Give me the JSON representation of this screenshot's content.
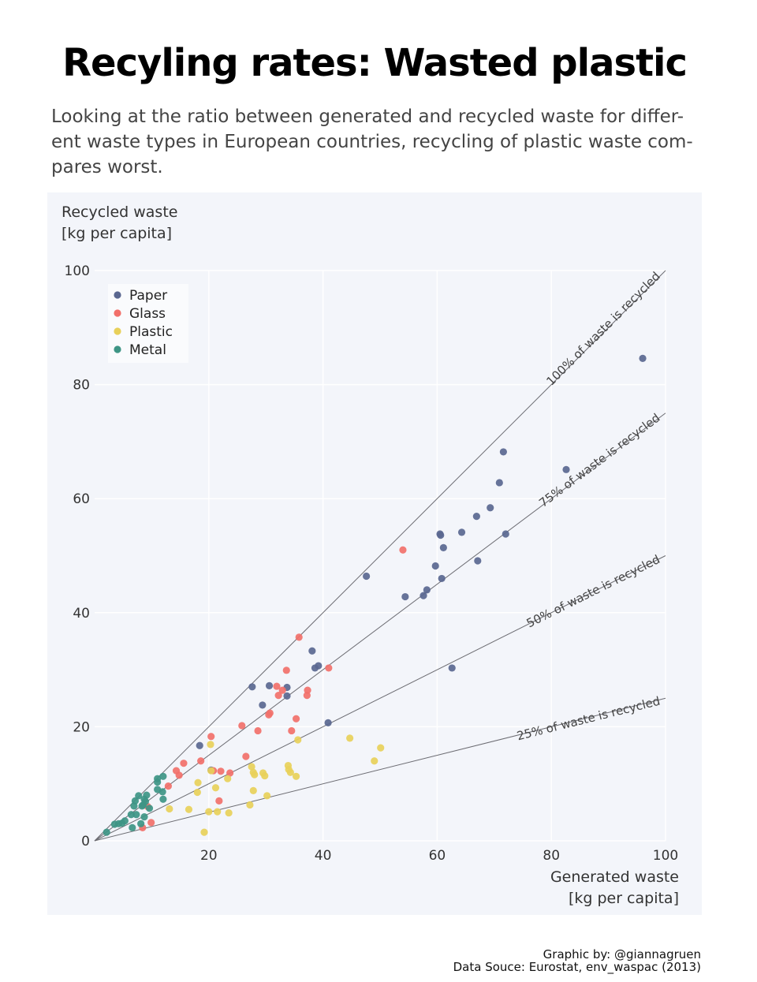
{
  "title": "Recyling rates: Wasted plastic",
  "subtitle": "Looking at the ratio between generated and recycled waste for differ-ent waste types in European countries, recycling of plastic waste com-pares worst.",
  "credits": {
    "graphic": "Graphic by: @giannagruen",
    "source": "Data Souce: Eurostat, env_waspac (2013)"
  },
  "chart_data": {
    "type": "scatter",
    "xlabel": [
      "Generated waste",
      "[kg per capita]"
    ],
    "ylabel": [
      "Recycled waste",
      "[kg per capita]"
    ],
    "xlim": [
      0,
      100
    ],
    "ylim": [
      0,
      100
    ],
    "x_ticks": [
      20,
      40,
      60,
      80,
      100
    ],
    "y_ticks": [
      0,
      20,
      40,
      60,
      80,
      100
    ],
    "grid": true,
    "legend_position": "top-left",
    "colors": {
      "Paper": "#5a6790",
      "Glass": "#f2706a",
      "Plastic": "#e8d05a",
      "Metal": "#3e9585"
    },
    "reference_lines": [
      {
        "ratio": 1.0,
        "label": "100% of  waste is recycled"
      },
      {
        "ratio": 0.75,
        "label": "75% of waste is recycled"
      },
      {
        "ratio": 0.5,
        "label": "50% of waste is recycled"
      },
      {
        "ratio": 0.25,
        "label": "25% of waste is recycled"
      }
    ],
    "series": [
      {
        "name": "Paper",
        "points": [
          [
            96,
            84.6
          ],
          [
            71.6,
            68.2
          ],
          [
            82.6,
            65.1
          ],
          [
            70.9,
            62.8
          ],
          [
            69.3,
            58.4
          ],
          [
            66.9,
            56.9
          ],
          [
            60.5,
            53.8
          ],
          [
            60.6,
            53.6
          ],
          [
            64.3,
            54.1
          ],
          [
            72.0,
            53.8
          ],
          [
            61.1,
            51.4
          ],
          [
            67.1,
            49.1
          ],
          [
            59.7,
            48.2
          ],
          [
            60.8,
            46.0
          ],
          [
            47.6,
            46.4
          ],
          [
            58.2,
            44.0
          ],
          [
            57.6,
            43.0
          ],
          [
            54.4,
            42.8
          ],
          [
            62.6,
            30.3
          ],
          [
            38.1,
            33.3
          ],
          [
            39.2,
            30.7
          ],
          [
            38.6,
            30.3
          ],
          [
            30.6,
            27.2
          ],
          [
            27.6,
            27.0
          ],
          [
            33.7,
            26.9
          ],
          [
            33.7,
            25.4
          ],
          [
            29.4,
            23.8
          ],
          [
            40.9,
            20.7
          ],
          [
            18.4,
            16.7
          ],
          [
            20.4,
            12.4
          ]
        ]
      },
      {
        "name": "Glass",
        "points": [
          [
            54.0,
            51.0
          ],
          [
            35.8,
            35.7
          ],
          [
            41.0,
            30.3
          ],
          [
            33.6,
            29.9
          ],
          [
            31.9,
            27.1
          ],
          [
            32.9,
            26.4
          ],
          [
            32.2,
            25.5
          ],
          [
            37.3,
            26.4
          ],
          [
            37.2,
            25.5
          ],
          [
            30.7,
            22.4
          ],
          [
            30.5,
            22.1
          ],
          [
            35.3,
            21.4
          ],
          [
            25.8,
            20.2
          ],
          [
            28.6,
            19.3
          ],
          [
            34.5,
            19.3
          ],
          [
            20.4,
            18.3
          ],
          [
            26.5,
            14.8
          ],
          [
            18.6,
            14.0
          ],
          [
            15.6,
            13.6
          ],
          [
            14.3,
            12.3
          ],
          [
            22.1,
            12.2
          ],
          [
            23.7,
            11.9
          ],
          [
            14.8,
            11.5
          ],
          [
            12.9,
            9.6
          ],
          [
            21.8,
            7.0
          ],
          [
            9.3,
            6.0
          ],
          [
            9.9,
            3.2
          ],
          [
            8.4,
            2.3
          ],
          [
            20.8,
            12.3
          ]
        ]
      },
      {
        "name": "Plastic",
        "points": [
          [
            50.1,
            16.3
          ],
          [
            44.7,
            18.0
          ],
          [
            49.0,
            14.0
          ],
          [
            35.6,
            17.7
          ],
          [
            20.3,
            16.9
          ],
          [
            33.9,
            13.2
          ],
          [
            27.5,
            13.0
          ],
          [
            34.0,
            12.5
          ],
          [
            34.3,
            12.0
          ],
          [
            27.8,
            12.0
          ],
          [
            20.4,
            12.3
          ],
          [
            29.5,
            11.9
          ],
          [
            28.0,
            11.6
          ],
          [
            29.8,
            11.4
          ],
          [
            35.3,
            11.3
          ],
          [
            23.3,
            10.9
          ],
          [
            18.1,
            10.2
          ],
          [
            21.2,
            9.3
          ],
          [
            27.8,
            8.8
          ],
          [
            18.0,
            8.5
          ],
          [
            30.2,
            7.9
          ],
          [
            27.2,
            6.3
          ],
          [
            13.1,
            5.6
          ],
          [
            16.5,
            5.5
          ],
          [
            21.5,
            5.1
          ],
          [
            20.0,
            5.1
          ],
          [
            23.5,
            4.9
          ],
          [
            19.2,
            1.5
          ]
        ]
      },
      {
        "name": "Metal",
        "points": [
          [
            12.0,
            11.3
          ],
          [
            11.0,
            10.9
          ],
          [
            11.0,
            10.3
          ],
          [
            11.0,
            9.0
          ],
          [
            11.9,
            8.6
          ],
          [
            9.1,
            8.0
          ],
          [
            7.7,
            7.9
          ],
          [
            8.7,
            7.3
          ],
          [
            7.1,
            7.0
          ],
          [
            8.9,
            6.9
          ],
          [
            8.5,
            6.3
          ],
          [
            8.3,
            6.1
          ],
          [
            6.9,
            6.1
          ],
          [
            12.0,
            7.3
          ],
          [
            9.6,
            5.7
          ],
          [
            6.4,
            4.6
          ],
          [
            7.3,
            4.6
          ],
          [
            8.7,
            4.2
          ],
          [
            5.3,
            3.5
          ],
          [
            8.1,
            3.0
          ],
          [
            4.2,
            3.0
          ],
          [
            3.5,
            2.9
          ],
          [
            4.8,
            3.1
          ],
          [
            6.6,
            2.3
          ],
          [
            2.1,
            1.5
          ]
        ]
      }
    ]
  }
}
